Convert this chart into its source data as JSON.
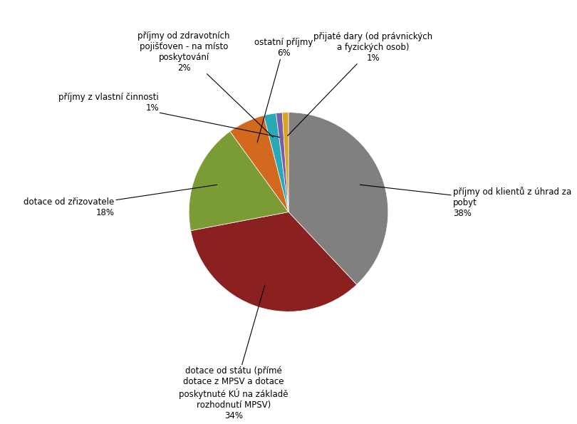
{
  "slices": [
    38,
    34,
    18,
    6,
    2,
    1,
    1
  ],
  "colors": [
    "#808080",
    "#8B2020",
    "#7B9B35",
    "#D2691E",
    "#29A8B8",
    "#7B5EA7",
    "#DAA520"
  ],
  "label_texts": [
    "příjmy od klientů z úhrad za\npobyt\n38%",
    "dotace od státu (přímé\ndotace z MPSV a dotace\nposky tnuté KÚ na základě\nrozhodnutí MPSV)\n34%",
    "dotace od zřizovatele\n18%",
    "ostatní příjmy\n6%",
    "příjmy od zdravotních\npojišťoven - na místo\nposkyto vání\n2%",
    "příjmy z vlastní činnosti\n1%",
    "přijaté dary (od právnických\na fyzických osob)\n1%"
  ],
  "figsize": [
    8.1,
    5.95
  ],
  "dpi": 100,
  "background_color": "#FFFFFF",
  "font_size": 8.5
}
